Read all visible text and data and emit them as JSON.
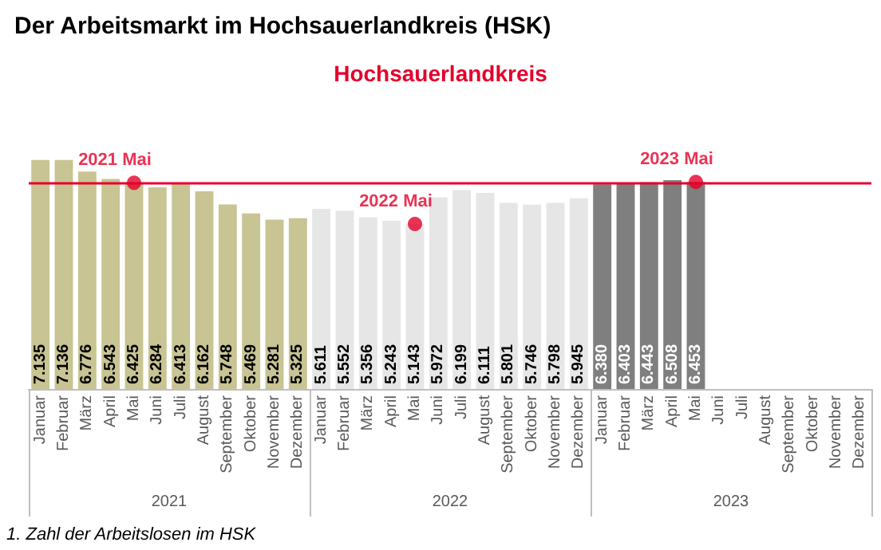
{
  "chart_data": {
    "type": "bar",
    "title": "Der Arbeitsmarkt im Hochsauerlandkreis (HSK)",
    "subtitle": "Hochsauerlandkreis",
    "categories": [
      "Januar",
      "Februar",
      "März",
      "April",
      "Mai",
      "Juni",
      "Juli",
      "August",
      "September",
      "Oktober",
      "November",
      "Dezember",
      "Januar",
      "Februar",
      "März",
      "April",
      "Mai",
      "Juni",
      "Juli",
      "August",
      "September",
      "Oktober",
      "November",
      "Dezember",
      "Januar",
      "Februar",
      "März",
      "April",
      "Mai",
      "Juni",
      "Juli",
      "August",
      "September",
      "Oktober",
      "November",
      "Dezember"
    ],
    "series": [
      {
        "colors": [
          "#c8c493",
          "#c8c493",
          "#c8c493",
          "#c8c493",
          "#c8c493",
          "#c8c493",
          "#c8c493",
          "#c8c493",
          "#c8c493",
          "#c8c493",
          "#c8c493",
          "#c8c493",
          "#e6e6e6",
          "#e6e6e6",
          "#e6e6e6",
          "#e6e6e6",
          "#e6e6e6",
          "#e6e6e6",
          "#e6e6e6",
          "#e6e6e6",
          "#e6e6e6",
          "#e6e6e6",
          "#e6e6e6",
          "#e6e6e6",
          "#7f7f7f",
          "#7f7f7f",
          "#7f7f7f",
          "#7f7f7f",
          "#7f7f7f",
          "#7f7f7f",
          "#7f7f7f",
          "#7f7f7f",
          "#7f7f7f",
          "#7f7f7f",
          "#7f7f7f",
          "#7f7f7f"
        ],
        "values": [
          7135,
          7136,
          6776,
          6543,
          6425,
          6284,
          6413,
          6162,
          5748,
          5469,
          5281,
          5325,
          5611,
          5552,
          5356,
          5243,
          5143,
          5972,
          6199,
          6111,
          5801,
          5746,
          5798,
          5945,
          6380,
          6403,
          6443,
          6508,
          6453,
          null,
          null,
          null,
          null,
          null,
          null,
          null
        ],
        "value_labels": [
          "7.135",
          "7.136",
          "6.776",
          "6.543",
          "6.425",
          "6.284",
          "6.413",
          "6.162",
          "5.748",
          "5.469",
          "5.281",
          "5.325",
          "5.611",
          "5.552",
          "5.356",
          "5.243",
          "5.143",
          "5.972",
          "6.199",
          "6.111",
          "5.801",
          "5.746",
          "5.798",
          "5.945",
          "6.380",
          "6.403",
          "6.443",
          "6.508",
          "6.453",
          null,
          null,
          null,
          null,
          null,
          null,
          null
        ]
      },
      {
        "type": "scatter",
        "name": "2021 Mai",
        "color": "#e4002b",
        "marker": "circle",
        "values": [
          null,
          null,
          null,
          null,
          6425,
          null,
          null,
          null,
          null,
          null,
          null,
          null,
          null,
          null,
          null,
          null,
          null,
          null,
          null,
          null,
          null,
          null,
          null,
          null,
          null,
          null,
          null,
          null,
          null,
          null,
          null,
          null,
          null,
          null,
          null,
          null
        ]
      },
      {
        "type": "scatter",
        "name": "2022 Mai",
        "color": "#e4002b",
        "marker": "circle",
        "values": [
          null,
          null,
          null,
          null,
          null,
          null,
          null,
          null,
          null,
          null,
          null,
          null,
          null,
          null,
          null,
          null,
          5143,
          null,
          null,
          null,
          null,
          null,
          null,
          null,
          null,
          null,
          null,
          null,
          null,
          null,
          null,
          null,
          null,
          null,
          null,
          null
        ]
      },
      {
        "type": "scatter",
        "name": "2023 Mai",
        "color": "#e4002b",
        "marker": "circle",
        "values": [
          null,
          null,
          null,
          null,
          null,
          null,
          null,
          null,
          null,
          null,
          null,
          null,
          null,
          null,
          null,
          null,
          null,
          null,
          null,
          null,
          null,
          null,
          null,
          null,
          null,
          null,
          null,
          null,
          6453,
          null,
          null,
          null,
          null,
          null,
          null,
          null
        ]
      }
    ],
    "ref_lines": [
      {
        "axis": "y",
        "value": 6425,
        "color": "#e4002b"
      }
    ],
    "annotations": [
      "2021",
      "2022",
      "2023",
      "1. Zahl der Arbeitslosen im HSK"
    ]
  }
}
